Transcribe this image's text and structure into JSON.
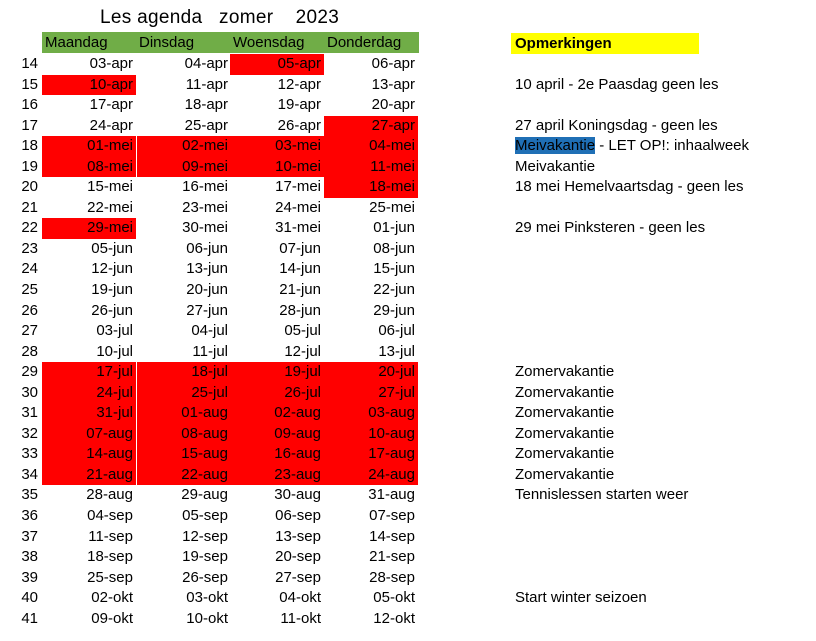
{
  "title": "Les agenda   zomer    2023",
  "header": {
    "days": [
      "Maandag",
      "Dinsdag",
      "Woensdag",
      "Donderdag"
    ],
    "remarks": "Opmerkingen"
  },
  "colors": {
    "header_green": "#70ad47",
    "highlight_red": "#ff0000",
    "remarks_yellow": "#ffff00",
    "selection_blue": "#1f6fb5"
  },
  "rows": [
    {
      "week": "14",
      "dates": [
        "03-apr",
        "04-apr",
        "05-apr",
        "06-apr"
      ],
      "highlight": [
        false,
        false,
        true,
        false
      ],
      "note": ""
    },
    {
      "week": "15",
      "dates": [
        "10-apr",
        "11-apr",
        "12-apr",
        "13-apr"
      ],
      "highlight": [
        true,
        false,
        false,
        false
      ],
      "note": "10 april - 2e Paasdag geen les"
    },
    {
      "week": "16",
      "dates": [
        "17-apr",
        "18-apr",
        "19-apr",
        "20-apr"
      ],
      "highlight": [
        false,
        false,
        false,
        false
      ],
      "note": ""
    },
    {
      "week": "17",
      "dates": [
        "24-apr",
        "25-apr",
        "26-apr",
        "27-apr"
      ],
      "highlight": [
        false,
        false,
        false,
        true
      ],
      "note": "27 april Koningsdag - geen les"
    },
    {
      "week": "18",
      "dates": [
        "01-mei",
        "02-mei",
        "03-mei",
        "04-mei"
      ],
      "highlight": [
        true,
        true,
        true,
        true
      ],
      "note": "",
      "note_marked": "Meivakantie",
      "note_rest": " - LET OP!: inhaalweek"
    },
    {
      "week": "19",
      "dates": [
        "08-mei",
        "09-mei",
        "10-mei",
        "11-mei"
      ],
      "highlight": [
        true,
        true,
        true,
        true
      ],
      "note": "Meivakantie"
    },
    {
      "week": "20",
      "dates": [
        "15-mei",
        "16-mei",
        "17-mei",
        "18-mei"
      ],
      "highlight": [
        false,
        false,
        false,
        true
      ],
      "note": "18 mei Hemelvaartsdag - geen les"
    },
    {
      "week": "21",
      "dates": [
        "22-mei",
        "23-mei",
        "24-mei",
        "25-mei"
      ],
      "highlight": [
        false,
        false,
        false,
        false
      ],
      "note": ""
    },
    {
      "week": "22",
      "dates": [
        "29-mei",
        "30-mei",
        "31-mei",
        "01-jun"
      ],
      "highlight": [
        true,
        false,
        false,
        false
      ],
      "note": "29 mei Pinksteren - geen les"
    },
    {
      "week": "23",
      "dates": [
        "05-jun",
        "06-jun",
        "07-jun",
        "08-jun"
      ],
      "highlight": [
        false,
        false,
        false,
        false
      ],
      "note": ""
    },
    {
      "week": "24",
      "dates": [
        "12-jun",
        "13-jun",
        "14-jun",
        "15-jun"
      ],
      "highlight": [
        false,
        false,
        false,
        false
      ],
      "note": ""
    },
    {
      "week": "25",
      "dates": [
        "19-jun",
        "20-jun",
        "21-jun",
        "22-jun"
      ],
      "highlight": [
        false,
        false,
        false,
        false
      ],
      "note": ""
    },
    {
      "week": "26",
      "dates": [
        "26-jun",
        "27-jun",
        "28-jun",
        "29-jun"
      ],
      "highlight": [
        false,
        false,
        false,
        false
      ],
      "note": ""
    },
    {
      "week": "27",
      "dates": [
        "03-jul",
        "04-jul",
        "05-jul",
        "06-jul"
      ],
      "highlight": [
        false,
        false,
        false,
        false
      ],
      "note": ""
    },
    {
      "week": "28",
      "dates": [
        "10-jul",
        "11-jul",
        "12-jul",
        "13-jul"
      ],
      "highlight": [
        false,
        false,
        false,
        false
      ],
      "note": ""
    },
    {
      "week": "29",
      "dates": [
        "17-jul",
        "18-jul",
        "19-jul",
        "20-jul"
      ],
      "highlight": [
        true,
        true,
        true,
        true
      ],
      "note": "Zomervakantie"
    },
    {
      "week": "30",
      "dates": [
        "24-jul",
        "25-jul",
        "26-jul",
        "27-jul"
      ],
      "highlight": [
        true,
        true,
        true,
        true
      ],
      "note": "Zomervakantie"
    },
    {
      "week": "31",
      "dates": [
        "31-jul",
        "01-aug",
        "02-aug",
        "03-aug"
      ],
      "highlight": [
        true,
        true,
        true,
        true
      ],
      "note": "Zomervakantie"
    },
    {
      "week": "32",
      "dates": [
        "07-aug",
        "08-aug",
        "09-aug",
        "10-aug"
      ],
      "highlight": [
        true,
        true,
        true,
        true
      ],
      "note": "Zomervakantie"
    },
    {
      "week": "33",
      "dates": [
        "14-aug",
        "15-aug",
        "16-aug",
        "17-aug"
      ],
      "highlight": [
        true,
        true,
        true,
        true
      ],
      "note": "Zomervakantie"
    },
    {
      "week": "34",
      "dates": [
        "21-aug",
        "22-aug",
        "23-aug",
        "24-aug"
      ],
      "highlight": [
        true,
        true,
        true,
        true
      ],
      "note": "Zomervakantie"
    },
    {
      "week": "35",
      "dates": [
        "28-aug",
        "29-aug",
        "30-aug",
        "31-aug"
      ],
      "highlight": [
        false,
        false,
        false,
        false
      ],
      "note": "Tennislessen starten weer"
    },
    {
      "week": "36",
      "dates": [
        "04-sep",
        "05-sep",
        "06-sep",
        "07-sep"
      ],
      "highlight": [
        false,
        false,
        false,
        false
      ],
      "note": ""
    },
    {
      "week": "37",
      "dates": [
        "11-sep",
        "12-sep",
        "13-sep",
        "14-sep"
      ],
      "highlight": [
        false,
        false,
        false,
        false
      ],
      "note": ""
    },
    {
      "week": "38",
      "dates": [
        "18-sep",
        "19-sep",
        "20-sep",
        "21-sep"
      ],
      "highlight": [
        false,
        false,
        false,
        false
      ],
      "note": ""
    },
    {
      "week": "39",
      "dates": [
        "25-sep",
        "26-sep",
        "27-sep",
        "28-sep"
      ],
      "highlight": [
        false,
        false,
        false,
        false
      ],
      "note": ""
    },
    {
      "week": "40",
      "dates": [
        "02-okt",
        "03-okt",
        "04-okt",
        "05-okt"
      ],
      "highlight": [
        false,
        false,
        false,
        false
      ],
      "note": "Start winter seizoen"
    },
    {
      "week": "41",
      "dates": [
        "09-okt",
        "10-okt",
        "11-okt",
        "12-okt"
      ],
      "highlight": [
        false,
        false,
        false,
        false
      ],
      "note": ""
    }
  ]
}
